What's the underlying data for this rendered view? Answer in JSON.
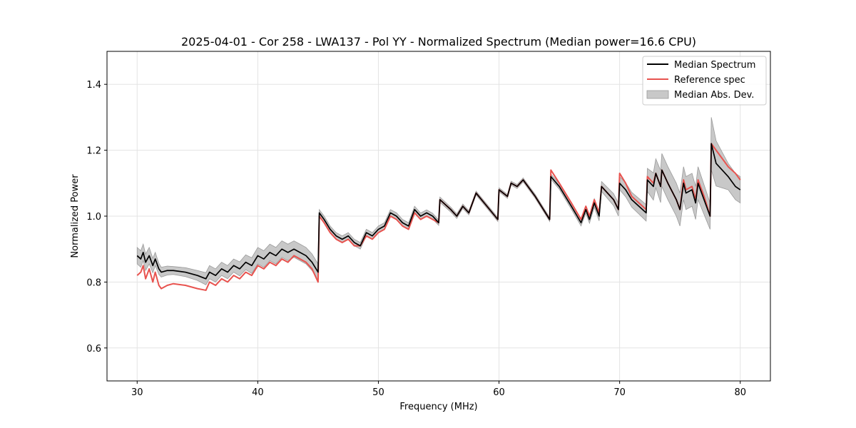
{
  "chart_data": {
    "type": "line",
    "title": "2025-04-01 - Cor 258 - LWA137 - Pol YY - Normalized Spectrum (Median power=16.6 CPU)",
    "xlabel": "Frequency (MHz)",
    "ylabel": "Normalized Power",
    "xlim": [
      27.5,
      82.5
    ],
    "ylim": [
      0.5,
      1.5
    ],
    "xticks": [
      30,
      40,
      50,
      60,
      70,
      80
    ],
    "yticks": [
      0.6,
      0.8,
      1.0,
      1.2,
      1.4
    ],
    "xtick_labels": [
      "30",
      "40",
      "50",
      "60",
      "70",
      "80"
    ],
    "ytick_labels": [
      "0.6",
      "0.8",
      "1.0",
      "1.2",
      "1.4"
    ],
    "grid": true,
    "legend_position": "top-right",
    "legend": [
      "Median Spectrum",
      "Reference spec",
      "Median Abs. Dev."
    ],
    "colors": {
      "median": "#000000",
      "reference": "#e8534f",
      "mad": "#b0b0b0",
      "overlap": "#8b0000"
    },
    "series": [
      {
        "name": "Median Spectrum",
        "x": [
          30.0,
          30.3,
          30.5,
          30.7,
          31.0,
          31.3,
          31.5,
          31.8,
          32.0,
          32.5,
          33.0,
          34.0,
          35.0,
          35.7,
          36.0,
          36.5,
          37.0,
          37.5,
          38.0,
          38.5,
          39.0,
          39.5,
          40.0,
          40.5,
          41.0,
          41.5,
          42.0,
          42.5,
          43.0,
          43.5,
          44.0,
          44.5,
          45.0,
          45.1,
          45.5,
          46.0,
          46.5,
          47.0,
          47.5,
          48.0,
          48.5,
          49.0,
          49.5,
          50.0,
          50.5,
          51.0,
          51.5,
          52.0,
          52.5,
          53.0,
          53.5,
          54.0,
          54.5,
          55.0,
          55.1,
          56.0,
          56.5,
          57.0,
          57.5,
          58.0,
          58.1,
          59.0,
          59.9,
          60.0,
          60.7,
          61.0,
          61.5,
          62.0,
          63.0,
          64.2,
          64.3,
          65.0,
          66.0,
          66.8,
          67.2,
          67.5,
          67.9,
          68.3,
          68.5,
          69.5,
          69.9,
          70.0,
          70.5,
          71.0,
          72.2,
          72.3,
          72.8,
          73.0,
          73.4,
          73.5,
          74.0,
          74.7,
          75.0,
          75.3,
          75.5,
          76.0,
          76.3,
          76.5,
          77.0,
          77.5,
          77.6,
          78.0,
          79.0,
          79.6,
          80.0
        ],
        "values": [
          0.88,
          0.87,
          0.89,
          0.86,
          0.88,
          0.85,
          0.87,
          0.84,
          0.83,
          0.835,
          0.835,
          0.83,
          0.82,
          0.81,
          0.83,
          0.82,
          0.84,
          0.83,
          0.85,
          0.84,
          0.86,
          0.85,
          0.88,
          0.87,
          0.89,
          0.88,
          0.9,
          0.89,
          0.9,
          0.89,
          0.88,
          0.86,
          0.83,
          1.01,
          0.99,
          0.96,
          0.94,
          0.93,
          0.94,
          0.92,
          0.91,
          0.95,
          0.94,
          0.96,
          0.97,
          1.01,
          1.0,
          0.98,
          0.97,
          1.02,
          1.0,
          1.01,
          1.0,
          0.98,
          1.05,
          1.02,
          1.0,
          1.03,
          1.01,
          1.06,
          1.07,
          1.03,
          0.99,
          1.08,
          1.06,
          1.1,
          1.09,
          1.11,
          1.06,
          0.99,
          1.12,
          1.09,
          1.03,
          0.98,
          1.02,
          0.99,
          1.04,
          1.0,
          1.09,
          1.05,
          1.02,
          1.1,
          1.08,
          1.05,
          1.01,
          1.11,
          1.09,
          1.13,
          1.09,
          1.14,
          1.1,
          1.05,
          1.02,
          1.1,
          1.07,
          1.08,
          1.04,
          1.1,
          1.05,
          1.0,
          1.22,
          1.16,
          1.12,
          1.09,
          1.08
        ]
      },
      {
        "name": "Reference spec",
        "x": [
          30.0,
          30.3,
          30.5,
          30.7,
          31.0,
          31.3,
          31.5,
          31.8,
          32.0,
          32.5,
          33.0,
          34.0,
          35.0,
          35.7,
          36.0,
          36.5,
          37.0,
          37.5,
          38.0,
          38.5,
          39.0,
          39.5,
          40.0,
          40.5,
          41.0,
          41.5,
          42.0,
          42.5,
          43.0,
          43.5,
          44.0,
          44.5,
          45.0,
          45.1,
          45.5,
          46.0,
          46.5,
          47.0,
          47.5,
          48.0,
          48.5,
          49.0,
          49.5,
          50.0,
          50.5,
          51.0,
          51.5,
          52.0,
          52.5,
          53.0,
          53.5,
          54.0,
          54.5,
          55.0,
          55.1,
          56.0,
          56.5,
          57.0,
          57.5,
          58.0,
          58.1,
          59.0,
          59.9,
          60.0,
          60.7,
          61.0,
          61.5,
          62.0,
          63.0,
          64.2,
          64.3,
          65.0,
          66.0,
          66.8,
          67.2,
          67.5,
          67.9,
          68.3,
          68.5,
          69.5,
          69.9,
          70.0,
          70.5,
          71.0,
          72.2,
          72.3,
          72.8,
          73.0,
          73.4,
          73.5,
          74.0,
          74.7,
          75.0,
          75.3,
          75.5,
          76.0,
          76.3,
          76.5,
          77.0,
          77.5,
          77.6,
          78.0,
          79.0,
          79.6,
          80.0
        ],
        "values": [
          0.82,
          0.83,
          0.85,
          0.81,
          0.84,
          0.8,
          0.83,
          0.79,
          0.78,
          0.79,
          0.795,
          0.79,
          0.78,
          0.775,
          0.8,
          0.79,
          0.81,
          0.8,
          0.82,
          0.81,
          0.83,
          0.82,
          0.85,
          0.84,
          0.86,
          0.85,
          0.87,
          0.86,
          0.88,
          0.87,
          0.86,
          0.84,
          0.8,
          1.0,
          0.98,
          0.95,
          0.93,
          0.92,
          0.93,
          0.91,
          0.91,
          0.94,
          0.93,
          0.95,
          0.96,
          1.0,
          0.99,
          0.97,
          0.96,
          1.01,
          0.99,
          1.0,
          0.99,
          0.98,
          1.05,
          1.02,
          1.0,
          1.03,
          1.01,
          1.06,
          1.07,
          1.03,
          0.99,
          1.08,
          1.06,
          1.1,
          1.09,
          1.11,
          1.06,
          0.99,
          1.14,
          1.1,
          1.04,
          0.99,
          1.03,
          1.0,
          1.05,
          1.01,
          1.09,
          1.05,
          1.02,
          1.13,
          1.1,
          1.06,
          1.02,
          1.12,
          1.1,
          1.13,
          1.09,
          1.14,
          1.1,
          1.05,
          1.02,
          1.11,
          1.08,
          1.09,
          1.05,
          1.11,
          1.06,
          1.0,
          1.22,
          1.2,
          1.15,
          1.13,
          1.11
        ]
      },
      {
        "name": "Median Abs. Dev.",
        "x": [
          30.0,
          31.0,
          32.0,
          33.0,
          35.0,
          36.0,
          38.0,
          40.0,
          42.0,
          44.0,
          45.0,
          45.1,
          47.0,
          49.0,
          51.0,
          53.0,
          55.0,
          55.1,
          58.0,
          60.0,
          62.0,
          64.2,
          64.3,
          67.0,
          70.0,
          72.2,
          72.3,
          73.5,
          75.0,
          76.5,
          77.5,
          77.6,
          79.0,
          80.0
        ],
        "mad": [
          0.025,
          0.025,
          0.015,
          0.012,
          0.015,
          0.02,
          0.02,
          0.025,
          0.025,
          0.025,
          0.025,
          0.01,
          0.01,
          0.01,
          0.01,
          0.01,
          0.008,
          0.008,
          0.006,
          0.006,
          0.006,
          0.006,
          0.008,
          0.01,
          0.02,
          0.025,
          0.035,
          0.05,
          0.05,
          0.05,
          0.04,
          0.08,
          0.04,
          0.04
        ]
      }
    ]
  }
}
